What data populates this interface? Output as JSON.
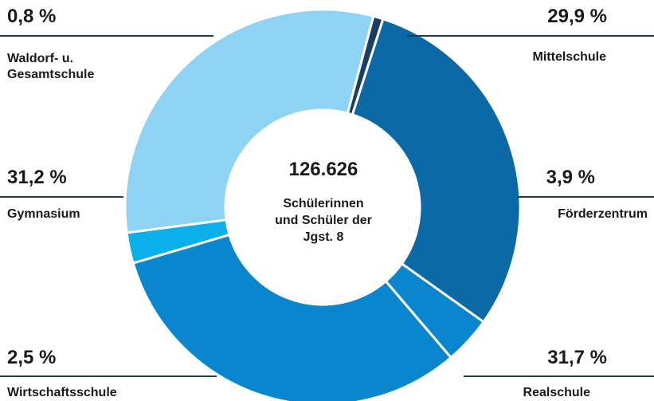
{
  "chart_data": {
    "type": "pie",
    "center_total": "126.626",
    "center_caption": "Schülerinnen\nund Schüler der\nJgst. 8",
    "slices": [
      {
        "label": "Mittelschule",
        "value": 29.9,
        "value_text": "29,9 %",
        "color": "#0b6aa5"
      },
      {
        "label": "Förderzentrum",
        "value": 3.9,
        "value_text": "3,9 %",
        "color": "#0a86cf"
      },
      {
        "label": "Realschule",
        "value": 31.7,
        "value_text": "31,7 %",
        "color": "#0a86cf"
      },
      {
        "label": "Wirtschaftsschule",
        "value": 2.5,
        "value_text": "2,5 %",
        "color": "#0ab0ea"
      },
      {
        "label": "Gymnasium",
        "value": 31.2,
        "value_text": "31,2 %",
        "color": "#8ed3f3"
      },
      {
        "label": "Waldorf- u.\nGesamtschule",
        "value": 0.8,
        "value_text": "0,8 %",
        "color": "#1a3f63"
      }
    ]
  }
}
